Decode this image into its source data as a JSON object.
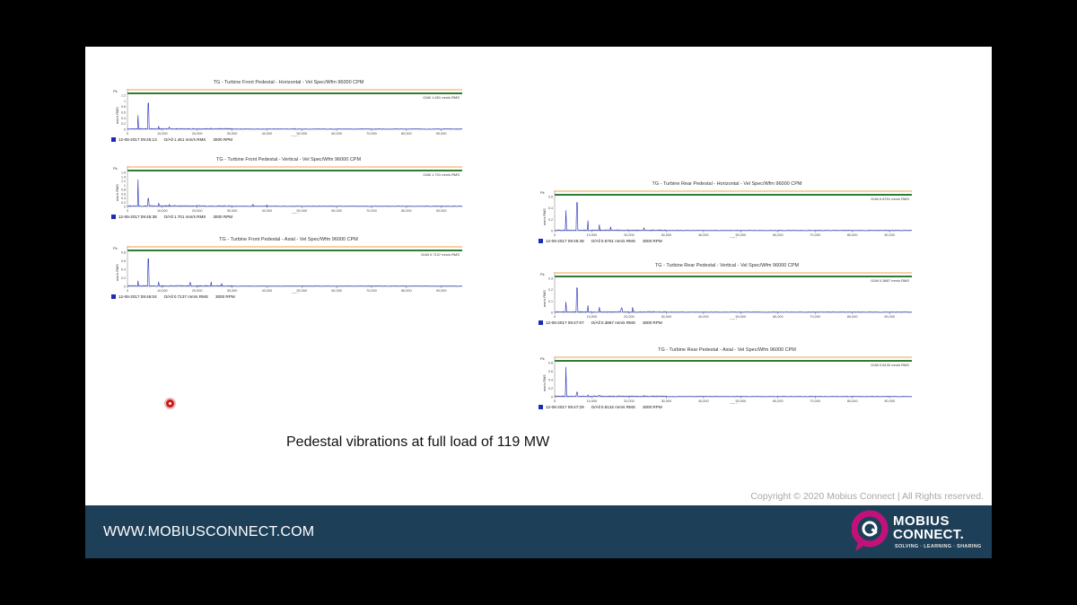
{
  "slide": {
    "caption": "Pedestal vibrations at full load of 119 MW",
    "copyright": "Copyright © 2020 Mobius Connect | All Rights reserved.",
    "footer_url": "WWW.MOBIUSCONNECT.COM",
    "brand_line1": "MOBIUS",
    "brand_line2": "CONNECT.",
    "brand_tagline": "SOLVING · LEARNING · SHARING",
    "colors": {
      "footer": "#1e3f58",
      "accent": "#c2127a",
      "trace": "#1b2bb8",
      "alarm_orange": "#f0a04b",
      "alarm_green": "#2e7d32"
    }
  },
  "panels": [
    {
      "title": "TG - Turbine Front Pedestal - Horizontal - Vel Spec/Wfm 96000 CPM",
      "timestamp": "12-06-2017 09:45:13",
      "overall": "O/All 1.451 mm/s RMS",
      "overall_box": "O/All 1.451 mm/s RMS",
      "speed": "3000 RPM",
      "unit": "Pk",
      "yaxis": "mm/s RMS",
      "xaxis": "CPM",
      "yticks": [
        "1.2",
        "1",
        "0.8",
        "0.6",
        "0.4",
        "0.2",
        "0"
      ],
      "xticks": [
        "0",
        "10,000",
        "20,000",
        "30,000",
        "40,000",
        "50,000",
        "60,000",
        "70,000",
        "80,000",
        "90,000"
      ],
      "ymax": 1.4,
      "xmax": 96000,
      "peaks": [
        [
          3000,
          0.65
        ],
        [
          6000,
          1.2
        ],
        [
          9000,
          0.15
        ],
        [
          12000,
          0.1
        ],
        [
          24000,
          0.05
        ],
        [
          48000,
          0.04
        ]
      ]
    },
    {
      "title": "TG - Turbine Front Pedestal - Vertical - Vel Spec/Wfm 96000 CPM",
      "timestamp": "12-06-2017 09:45:38",
      "overall": "O/All 1.701 mm/s RMS",
      "overall_box": "O/All 1.701 mm/s RMS",
      "speed": "3000 RPM",
      "unit": "Pk",
      "yaxis": "mm/s RMS",
      "xaxis": "CPM",
      "yticks": [
        "1.6",
        "1.4",
        "1.2",
        "1",
        "0.8",
        "0.6",
        "0.4",
        "0.2",
        "0"
      ],
      "xticks": [
        "0",
        "10,000",
        "20,000",
        "30,000",
        "40,000",
        "50,000",
        "60,000",
        "70,000",
        "80,000",
        "90,000"
      ],
      "ymax": 1.7,
      "xmax": 96000,
      "peaks": [
        [
          3000,
          1.5
        ],
        [
          6000,
          0.45
        ],
        [
          9000,
          0.2
        ],
        [
          12000,
          0.1
        ],
        [
          36000,
          0.12
        ],
        [
          40000,
          0.08
        ]
      ]
    },
    {
      "title": "TG - Turbine Front Pedestal - Axial - Vel Spec/Wfm 96000 CPM",
      "timestamp": "12-06-2017 09:46:04",
      "overall": "O/All 0.7137 mm/s RMS",
      "overall_box": "O/All 0.7137 mm/s RMS",
      "speed": "3000 RPM",
      "unit": "Pk",
      "yaxis": "mm/s RMS",
      "xaxis": "CPM",
      "yticks": [
        "0.8",
        "0.6",
        "0.4",
        "0.2",
        "0"
      ],
      "xticks": [
        "0",
        "10,000",
        "20,000",
        "30,000",
        "40,000",
        "50,000",
        "60,000",
        "70,000",
        "80,000",
        "90,000"
      ],
      "ymax": 0.8,
      "xmax": 96000,
      "peaks": [
        [
          3000,
          0.15
        ],
        [
          6000,
          0.72
        ],
        [
          9000,
          0.12
        ],
        [
          18000,
          0.1
        ],
        [
          24000,
          0.12
        ],
        [
          27000,
          0.08
        ]
      ]
    },
    {
      "title": "TG - Turbine Rear Pedestal - Horizontal - Vel Spec/Wfm 96000 CPM",
      "timestamp": "12-06-2017 09:46:48",
      "overall": "O/All 0.6751 mm/s RMS",
      "overall_box": "O/All 0.6751 mm/s RMS",
      "speed": "3000 RPM",
      "unit": "Pk",
      "yaxis": "mm/s RMS",
      "xaxis": "CPM",
      "yticks": [
        "0.6",
        "0.4",
        "0.2",
        "0"
      ],
      "xticks": [
        "0",
        "10,000",
        "20,000",
        "30,000",
        "40,000",
        "50,000",
        "60,000",
        "70,000",
        "80,000",
        "90,000"
      ],
      "ymax": 0.6,
      "xmax": 96000,
      "peaks": [
        [
          3000,
          0.4
        ],
        [
          6000,
          0.55
        ],
        [
          9000,
          0.2
        ],
        [
          12000,
          0.12
        ],
        [
          15000,
          0.08
        ],
        [
          24000,
          0.06
        ]
      ]
    },
    {
      "title": "TG - Turbine Rear Pedestal - Vertical - Vel Spec/Wfm 96000 CPM",
      "timestamp": "12-06-2017 09:47:07",
      "overall": "O/All 0.3867 mm/s RMS",
      "overall_box": "O/All 0.3867 mm/s RMS",
      "speed": "3000 RPM",
      "unit": "Pk",
      "yaxis": "mm/s RMS",
      "xaxis": "CPM",
      "yticks": [
        "0.3",
        "0.2",
        "0.1",
        "0"
      ],
      "xticks": [
        "0",
        "10,000",
        "20,000",
        "30,000",
        "40,000",
        "50,000",
        "60,000",
        "70,000",
        "80,000",
        "90,000"
      ],
      "ymax": 0.35,
      "xmax": 96000,
      "peaks": [
        [
          3000,
          0.12
        ],
        [
          6000,
          0.28
        ],
        [
          9000,
          0.08
        ],
        [
          12000,
          0.06
        ],
        [
          18000,
          0.05
        ],
        [
          21000,
          0.06
        ]
      ]
    },
    {
      "title": "TG - Turbine Rear Pedestal - Axial - Vel Spec/Wfm 96000 CPM",
      "timestamp": "12-06-2017 09:47:29",
      "overall": "O/All 0.8132 mm/s RMS",
      "overall_box": "O/All 0.8132 mm/s RMS",
      "speed": "3000 RPM",
      "unit": "Pk",
      "yaxis": "mm/s RMS",
      "xaxis": "CPM",
      "yticks": [
        "0.8",
        "0.6",
        "0.4",
        "0.2",
        "0"
      ],
      "xticks": [
        "0",
        "10,000",
        "20,000",
        "30,000",
        "40,000",
        "50,000",
        "60,000",
        "70,000",
        "80,000",
        "90,000"
      ],
      "ymax": 0.8,
      "xmax": 96000,
      "peaks": [
        [
          3000,
          0.78
        ],
        [
          6000,
          0.12
        ],
        [
          9000,
          0.05
        ],
        [
          12000,
          0.04
        ],
        [
          24000,
          0.03
        ]
      ]
    }
  ]
}
